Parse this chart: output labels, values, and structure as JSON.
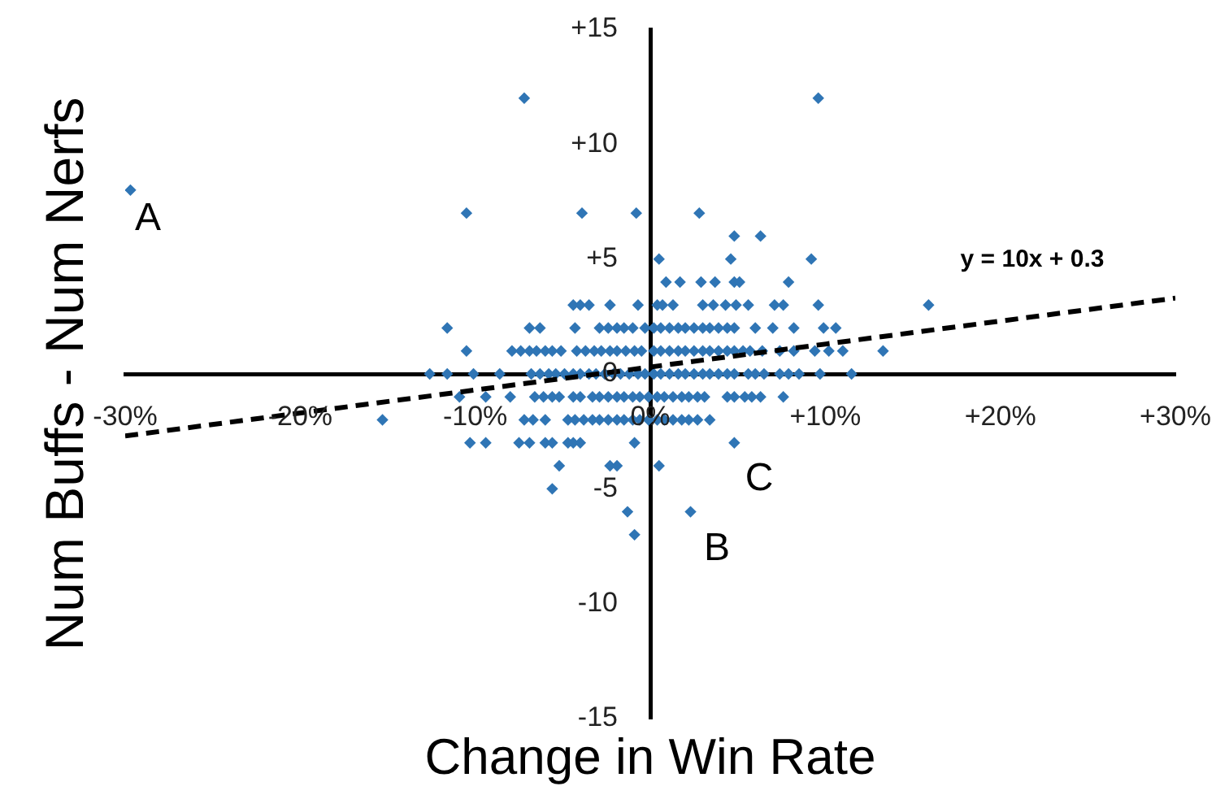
{
  "chart_data": {
    "type": "scatter",
    "xlabel": "Change in Win Rate",
    "ylabel": "Num Buffs - Num Nerfs",
    "xlim": [
      -0.3,
      0.3
    ],
    "ylim": [
      -15,
      15
    ],
    "xticks": [
      {
        "value": -0.3,
        "label": "-30%"
      },
      {
        "value": -0.2,
        "label": "-20%"
      },
      {
        "value": -0.1,
        "label": "-10%"
      },
      {
        "value": 0,
        "label": "0%"
      },
      {
        "value": 0.1,
        "label": "+10%"
      },
      {
        "value": 0.2,
        "label": "+20%"
      },
      {
        "value": 0.3,
        "label": "+30%"
      }
    ],
    "yticks": [
      {
        "value": -15,
        "label": "-15"
      },
      {
        "value": -10,
        "label": "-10"
      },
      {
        "value": -5,
        "label": "-5"
      },
      0,
      {
        "value": 5,
        "label": "+5"
      },
      {
        "value": 10,
        "label": "+10"
      },
      {
        "value": 15,
        "label": "+15"
      }
    ],
    "grid": false,
    "legend": false,
    "series": [
      {
        "type": "scatter",
        "color": "#2f75b5",
        "marker": "diamond",
        "x": [
          -0.072,
          0.096,
          -0.297,
          -0.105,
          -0.039,
          -0.008,
          0.028,
          0.048,
          0.063,
          0.005,
          0.046,
          0.092,
          0.009,
          0.017,
          0.029,
          0.037,
          0.048,
          0.051,
          0.079,
          -0.044,
          -0.04,
          -0.035,
          -0.023,
          -0.007,
          0.004,
          0.007,
          0.013,
          0.03,
          0.036,
          0.043,
          0.049,
          0.056,
          0.071,
          0.076,
          0.096,
          0.159,
          -0.116,
          -0.069,
          -0.063,
          -0.043,
          -0.029,
          -0.024,
          -0.019,
          -0.015,
          -0.01,
          -0.003,
          0.002,
          0.006,
          0.011,
          0.016,
          0.02,
          0.025,
          0.03,
          0.034,
          0.039,
          0.044,
          0.048,
          0.06,
          0.07,
          0.082,
          0.099,
          0.106,
          -0.105,
          -0.079,
          -0.074,
          -0.069,
          -0.065,
          -0.06,
          -0.056,
          -0.051,
          -0.042,
          -0.037,
          -0.032,
          -0.028,
          -0.023,
          -0.019,
          -0.014,
          -0.009,
          -0.005,
          0.002,
          0.006,
          0.011,
          0.016,
          0.02,
          0.025,
          0.03,
          0.034,
          0.039,
          0.044,
          0.048,
          0.053,
          0.057,
          0.064,
          0.074,
          0.082,
          0.094,
          0.102,
          0.11,
          0.133,
          -0.126,
          -0.116,
          -0.101,
          -0.086,
          -0.068,
          -0.063,
          -0.058,
          -0.054,
          -0.049,
          -0.044,
          -0.04,
          -0.035,
          -0.031,
          -0.026,
          -0.021,
          -0.017,
          -0.012,
          -0.007,
          -0.003,
          0.002,
          0.006,
          0.011,
          0.016,
          0.02,
          0.025,
          0.03,
          0.034,
          0.039,
          0.044,
          0.048,
          0.056,
          0.06,
          0.065,
          0.074,
          0.079,
          0.085,
          0.097,
          0.115,
          -0.109,
          -0.094,
          -0.08,
          -0.066,
          -0.061,
          -0.056,
          -0.052,
          -0.044,
          -0.04,
          -0.033,
          -0.029,
          -0.024,
          -0.019,
          -0.015,
          -0.01,
          -0.006,
          -0.001,
          0.004,
          0.008,
          0.013,
          0.018,
          0.022,
          0.027,
          0.031,
          0.044,
          0.048,
          0.054,
          0.058,
          0.063,
          0.076,
          -0.153,
          -0.072,
          -0.067,
          -0.06,
          -0.047,
          -0.043,
          -0.038,
          -0.033,
          -0.029,
          -0.024,
          -0.019,
          -0.015,
          -0.01,
          -0.006,
          -0.001,
          0.004,
          0.008,
          0.013,
          0.018,
          0.022,
          0.027,
          0.034,
          -0.103,
          -0.094,
          -0.075,
          -0.069,
          -0.06,
          -0.056,
          -0.047,
          -0.044,
          -0.04,
          -0.009,
          0.048,
          -0.052,
          -0.023,
          -0.019,
          0.005,
          -0.056,
          -0.013,
          0.023,
          -0.009
        ],
        "values": [
          12,
          12,
          8,
          7,
          7,
          7,
          7,
          6,
          6,
          5,
          5,
          5,
          4,
          4,
          4,
          4,
          4,
          4,
          4,
          3,
          3,
          3,
          3,
          3,
          3,
          3,
          3,
          3,
          3,
          3,
          3,
          3,
          3,
          3,
          3,
          3,
          2,
          2,
          2,
          2,
          2,
          2,
          2,
          2,
          2,
          2,
          2,
          2,
          2,
          2,
          2,
          2,
          2,
          2,
          2,
          2,
          2,
          2,
          2,
          2,
          2,
          2,
          1,
          1,
          1,
          1,
          1,
          1,
          1,
          1,
          1,
          1,
          1,
          1,
          1,
          1,
          1,
          1,
          1,
          1,
          1,
          1,
          1,
          1,
          1,
          1,
          1,
          1,
          1,
          1,
          1,
          1,
          1,
          1,
          1,
          1,
          1,
          1,
          1,
          0,
          0,
          0,
          0,
          0,
          0,
          0,
          0,
          0,
          0,
          0,
          0,
          0,
          0,
          0,
          0,
          0,
          0,
          0,
          0,
          0,
          0,
          0,
          0,
          0,
          0,
          0,
          0,
          0,
          0,
          0,
          0,
          0,
          0,
          0,
          0,
          0,
          0,
          -1,
          -1,
          -1,
          -1,
          -1,
          -1,
          -1,
          -1,
          -1,
          -1,
          -1,
          -1,
          -1,
          -1,
          -1,
          -1,
          -1,
          -1,
          -1,
          -1,
          -1,
          -1,
          -1,
          -1,
          -1,
          -1,
          -1,
          -1,
          -1,
          -1,
          -2,
          -2,
          -2,
          -2,
          -2,
          -2,
          -2,
          -2,
          -2,
          -2,
          -2,
          -2,
          -2,
          -2,
          -2,
          -2,
          -2,
          -2,
          -2,
          -2,
          -2,
          -2,
          -3,
          -3,
          -3,
          -3,
          -3,
          -3,
          -3,
          -3,
          -3,
          -3,
          -3,
          -4,
          -4,
          -4,
          -4,
          -5,
          -6,
          -6,
          -7
        ]
      },
      {
        "type": "line",
        "color": "#000000",
        "marker": "none",
        "line_style": "dashed",
        "x": [
          -0.3,
          0.3
        ],
        "values": [
          -2.7,
          3.3
        ]
      }
    ],
    "annotations": [
      "A",
      "B",
      "C",
      "y = 10x + 0.3"
    ]
  }
}
